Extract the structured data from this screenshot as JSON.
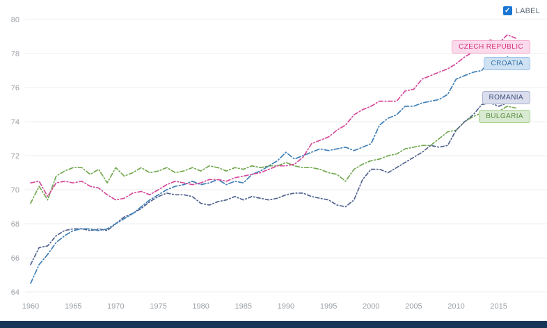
{
  "controls": {
    "label_checkbox": {
      "text": "LABEL",
      "checked": true
    }
  },
  "colors": {
    "grid": "#ededed",
    "tick": "#9aa0a6",
    "checkbox_blue": "#1976d2",
    "checkbox_text": "#5f6b7a",
    "footer": "#173557",
    "background": "#ffffff"
  },
  "chart_data": {
    "type": "line",
    "title": "",
    "xlabel": "",
    "ylabel": "",
    "x_start": 1960,
    "x_end": 2017,
    "x_ticks": [
      1960,
      1965,
      1970,
      1975,
      1980,
      1985,
      1990,
      1995,
      2000,
      2005,
      2010,
      2015
    ],
    "y_ticks": [
      64,
      66,
      68,
      70,
      72,
      74,
      76,
      78,
      80
    ],
    "ylim": [
      64,
      80
    ],
    "grid": "horizontal-only",
    "legend_position": "right-end-badges",
    "series": [
      {
        "id": "czech-republic",
        "name": "CZECH REPUBLIC",
        "color": "#d6499a",
        "badge_bg": "#fbdbeb",
        "badge_border": "#f2a7cc",
        "badge_text": "#d6317e",
        "values": [
          70.4,
          70.5,
          69.6,
          70.4,
          70.5,
          70.4,
          70.5,
          70.2,
          70.1,
          69.7,
          69.4,
          69.5,
          69.8,
          69.9,
          69.7,
          70.0,
          70.3,
          70.5,
          70.4,
          70.3,
          70.4,
          70.6,
          70.6,
          70.5,
          70.7,
          70.8,
          70.9,
          71.0,
          71.2,
          71.4,
          71.4,
          71.5,
          71.9,
          72.7,
          72.9,
          73.1,
          73.5,
          73.8,
          74.4,
          74.7,
          74.9,
          75.2,
          75.2,
          75.2,
          75.8,
          75.9,
          76.5,
          76.7,
          76.9,
          77.1,
          77.4,
          77.8,
          78.1,
          78.2,
          78.8,
          78.6,
          79.1,
          78.9
        ]
      },
      {
        "id": "croatia",
        "name": "CROATIA",
        "color": "#3f7fb5",
        "badge_bg": "#cfe2f3",
        "badge_border": "#9dc3e6",
        "badge_text": "#2e6da4",
        "values": [
          64.5,
          65.6,
          66.2,
          66.9,
          67.3,
          67.6,
          67.7,
          67.7,
          67.6,
          67.7,
          68.0,
          68.3,
          68.6,
          69.0,
          69.4,
          69.7,
          70.0,
          70.2,
          70.3,
          70.5,
          70.3,
          70.4,
          70.6,
          70.3,
          70.5,
          70.4,
          70.9,
          71.1,
          71.4,
          71.7,
          72.2,
          71.8,
          72.0,
          72.2,
          72.4,
          72.3,
          72.4,
          72.5,
          72.3,
          72.5,
          72.7,
          73.8,
          74.2,
          74.4,
          74.9,
          74.9,
          75.1,
          75.2,
          75.3,
          75.6,
          76.5,
          76.7,
          76.9,
          77.0,
          77.6,
          77.2,
          77.8,
          77.5
        ]
      },
      {
        "id": "romania",
        "name": "ROMANIA",
        "color": "#51628f",
        "badge_bg": "#dadeed",
        "badge_border": "#a9b2d1",
        "badge_text": "#3f4f7e",
        "values": [
          65.6,
          66.6,
          66.7,
          67.3,
          67.6,
          67.7,
          67.7,
          67.6,
          67.7,
          67.6,
          68.0,
          68.4,
          68.6,
          68.9,
          69.3,
          69.6,
          69.8,
          69.7,
          69.7,
          69.6,
          69.2,
          69.1,
          69.3,
          69.4,
          69.6,
          69.4,
          69.6,
          69.5,
          69.4,
          69.5,
          69.7,
          69.8,
          69.8,
          69.6,
          69.5,
          69.4,
          69.1,
          69.0,
          69.4,
          70.6,
          71.2,
          71.2,
          71.0,
          71.3,
          71.6,
          71.9,
          72.2,
          72.6,
          72.5,
          72.6,
          73.5,
          74.0,
          74.4,
          75.0,
          75.1,
          74.9,
          75.1,
          75.2
        ]
      },
      {
        "id": "bulgaria",
        "name": "BULGARIA",
        "color": "#71a84f",
        "badge_bg": "#d9ead3",
        "badge_border": "#a9d18e",
        "badge_text": "#5a8f3c",
        "values": [
          69.2,
          70.2,
          69.4,
          70.8,
          71.1,
          71.3,
          71.3,
          70.9,
          71.2,
          70.4,
          71.3,
          70.8,
          71.0,
          71.3,
          71.0,
          71.1,
          71.3,
          71.0,
          71.1,
          71.3,
          71.1,
          71.4,
          71.3,
          71.1,
          71.3,
          71.2,
          71.4,
          71.3,
          71.4,
          71.4,
          71.6,
          71.4,
          71.3,
          71.3,
          71.2,
          71.0,
          70.9,
          70.5,
          71.2,
          71.5,
          71.7,
          71.8,
          72.0,
          72.1,
          72.4,
          72.5,
          72.6,
          72.6,
          73.0,
          73.4,
          73.5,
          74.0,
          74.3,
          74.5,
          74.5,
          74.6,
          74.9,
          74.8
        ]
      }
    ]
  }
}
